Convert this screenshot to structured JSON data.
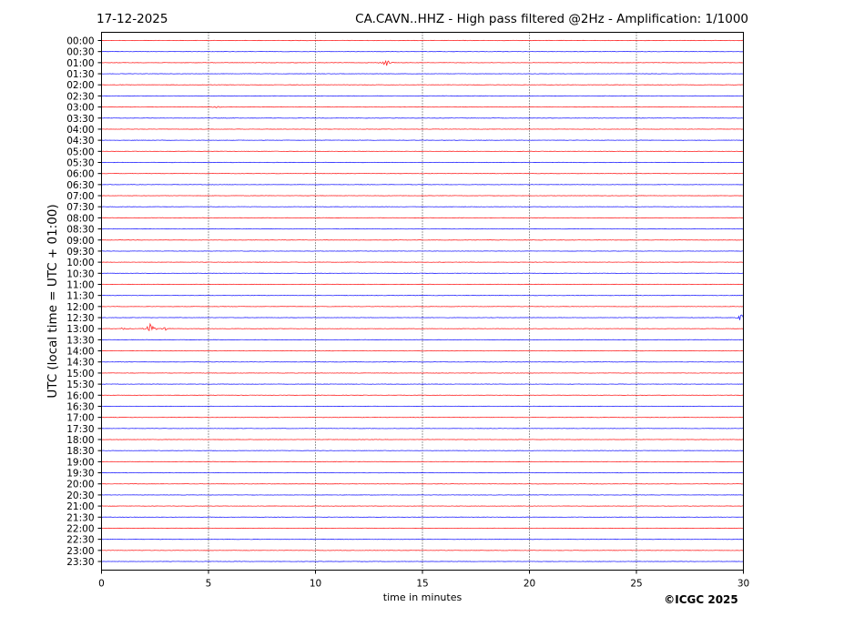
{
  "chart_data": {
    "type": "line",
    "subtype": "helicorder",
    "date": "17-12-2025",
    "title": "CA.CAVN..HHZ - High pass filtered @2Hz - Amplification: 1/1000",
    "xlabel": "time in minutes",
    "ylabel": "UTC (local time = UTC + 01:00)",
    "xlim": [
      0,
      30
    ],
    "xticks": [
      "0",
      "5",
      "10",
      "15",
      "20",
      "25",
      "30"
    ],
    "xtick_values": [
      0,
      5,
      10,
      15,
      20,
      25,
      30
    ],
    "grid": "vertical dotted at x ticks",
    "colors": [
      "#ff0000",
      "#0000ff"
    ],
    "rows": [
      "00:00",
      "00:30",
      "01:00",
      "01:30",
      "02:00",
      "02:30",
      "03:00",
      "03:30",
      "04:00",
      "04:30",
      "05:00",
      "05:30",
      "06:00",
      "06:30",
      "07:00",
      "07:30",
      "08:00",
      "08:30",
      "09:00",
      "09:30",
      "10:00",
      "10:30",
      "11:00",
      "11:30",
      "12:00",
      "12:30",
      "13:00",
      "13:30",
      "14:00",
      "14:30",
      "15:00",
      "15:30",
      "16:00",
      "16:30",
      "17:00",
      "17:30",
      "18:00",
      "18:30",
      "19:00",
      "19:30",
      "20:00",
      "20:30",
      "21:00",
      "21:30",
      "22:00",
      "22:30",
      "23:00",
      "23:30"
    ],
    "events": [
      {
        "row": "01:00",
        "minute": 13.3,
        "amplitude": 0.35
      },
      {
        "row": "03:00",
        "minute": 5.4,
        "amplitude": 0.12
      },
      {
        "row": "12:30",
        "minute": 29.9,
        "amplitude": 0.45
      },
      {
        "row": "13:00",
        "minute": 2.3,
        "amplitude": 0.6
      },
      {
        "row": "13:00",
        "minute": 3.0,
        "amplitude": 0.12
      },
      {
        "row": "13:00",
        "minute": 1.0,
        "amplitude": 0.1
      }
    ]
  },
  "copyright": "©ICGC 2025"
}
